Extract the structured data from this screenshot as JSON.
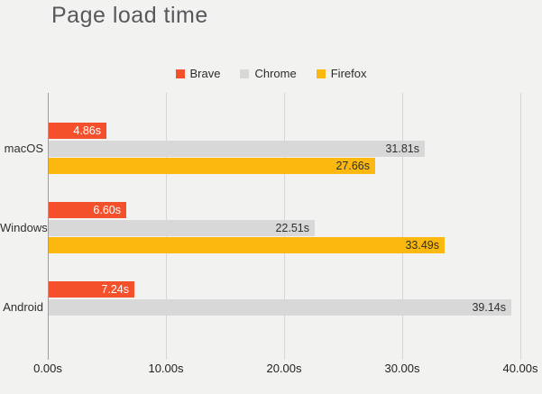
{
  "title": "Page load time",
  "colors": {
    "background": "#f2f3f1",
    "title_text": "#57585c",
    "grid_line": "#d6d6d6",
    "axis_line": "#9e9e9e",
    "tick_text": "#222222",
    "category_text": "#2f2f2f",
    "brave_orange": "#f4502c",
    "chrome_gray": "#d8d8d8",
    "firefox_yellow": "#fbb80e"
  },
  "chart_data": {
    "type": "bar",
    "orientation": "horizontal",
    "title": "Page load time",
    "categories": [
      "macOS",
      "Windows",
      "Android"
    ],
    "series": [
      {
        "name": "Brave",
        "color": "#f4502c",
        "label_color": "#ffffff",
        "values": [
          4.86,
          6.6,
          7.24
        ],
        "labels": [
          "4.86s",
          "6.60s",
          "7.24s"
        ]
      },
      {
        "name": "Chrome",
        "color": "#d8d8d8",
        "label_color": "#2f2f2f",
        "values": [
          31.81,
          22.51,
          39.14
        ],
        "labels": [
          "31.81s",
          "22.51s",
          "39.14s"
        ]
      },
      {
        "name": "Firefox",
        "color": "#fbb80e",
        "label_color": "#2f2f2f",
        "values": [
          27.66,
          33.49,
          null
        ],
        "labels": [
          "27.66s",
          "33.49s",
          null
        ]
      }
    ],
    "x_axis": {
      "unit": "s",
      "tick_values": [
        0,
        10,
        20,
        30,
        40
      ],
      "tick_labels": [
        "0.00s",
        "10.00s",
        "20.00s",
        "30.00s",
        "40.00s"
      ],
      "xlim": [
        0,
        40
      ]
    },
    "grid": true,
    "legend_position": "top-center"
  }
}
